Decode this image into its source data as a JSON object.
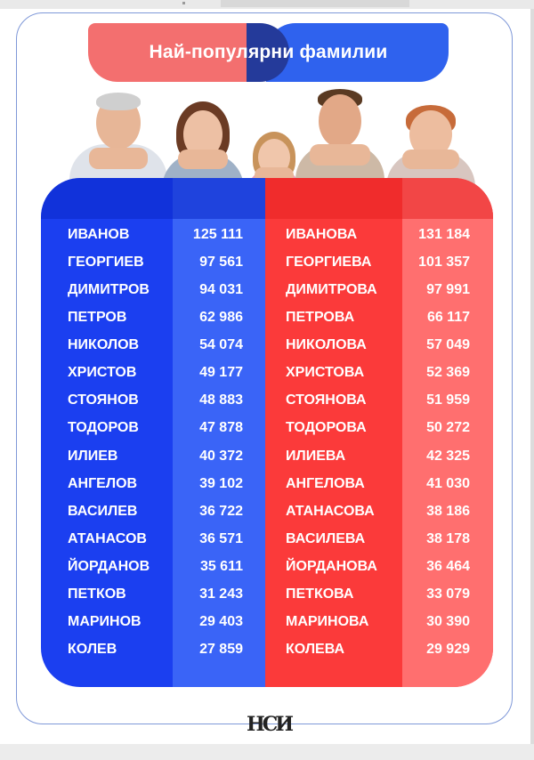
{
  "title": "Най-популярни фамилии",
  "colors": {
    "male_primary": "#1b3ff0",
    "male_secondary": "#3a64f7",
    "female_primary": "#fb3a3a",
    "female_secondary": "#ff6f6f",
    "title_left": "#f36f6f",
    "title_right": "#2f62ee"
  },
  "logo_text": "НСИ",
  "rows": [
    {
      "male_name": "ИВАНОВ",
      "male_count": "125 111",
      "female_name": "ИВАНОВА",
      "female_count": "131 184"
    },
    {
      "male_name": "ГЕОРГИЕВ",
      "male_count": "97 561",
      "female_name": "ГЕОРГИЕВА",
      "female_count": "101 357"
    },
    {
      "male_name": "ДИМИТРОВ",
      "male_count": "94 031",
      "female_name": "ДИМИТРОВА",
      "female_count": "97 991"
    },
    {
      "male_name": "ПЕТРОВ",
      "male_count": "62 986",
      "female_name": "ПЕТРОВА",
      "female_count": "66 117"
    },
    {
      "male_name": "НИКОЛОВ",
      "male_count": "54 074",
      "female_name": "НИКОЛОВА",
      "female_count": "57 049"
    },
    {
      "male_name": "ХРИСТОВ",
      "male_count": "49 177",
      "female_name": "ХРИСТОВА",
      "female_count": "52 369"
    },
    {
      "male_name": "СТОЯНОВ",
      "male_count": "48 883",
      "female_name": "СТОЯНОВА",
      "female_count": "51 959"
    },
    {
      "male_name": "ТОДОРОВ",
      "male_count": "47 878",
      "female_name": "ТОДОРОВА",
      "female_count": "50 272"
    },
    {
      "male_name": "ИЛИЕВ",
      "male_count": "40 372",
      "female_name": "ИЛИЕВА",
      "female_count": "42 325"
    },
    {
      "male_name": "АНГЕЛОВ",
      "male_count": "39 102",
      "female_name": "АНГЕЛОВА",
      "female_count": "41 030"
    },
    {
      "male_name": "ВАСИЛЕВ",
      "male_count": "36 722",
      "female_name": "АТАНАСОВА",
      "female_count": "38 186"
    },
    {
      "male_name": "АТАНАСОВ",
      "male_count": "36 571",
      "female_name": "ВАСИЛЕВА",
      "female_count": "38 178"
    },
    {
      "male_name": "ЙОРДАНОВ",
      "male_count": "35 611",
      "female_name": "ЙОРДАНОВА",
      "female_count": "36 464"
    },
    {
      "male_name": "ПЕТКОВ",
      "male_count": "31 243",
      "female_name": "ПЕТКОВА",
      "female_count": "33 079"
    },
    {
      "male_name": "МАРИНОВ",
      "male_count": "29 403",
      "female_name": "МАРИНОВА",
      "female_count": "30 390"
    },
    {
      "male_name": "КОЛЕВ",
      "male_count": "27 859",
      "female_name": "КОЛЕВА",
      "female_count": "29 929"
    }
  ]
}
